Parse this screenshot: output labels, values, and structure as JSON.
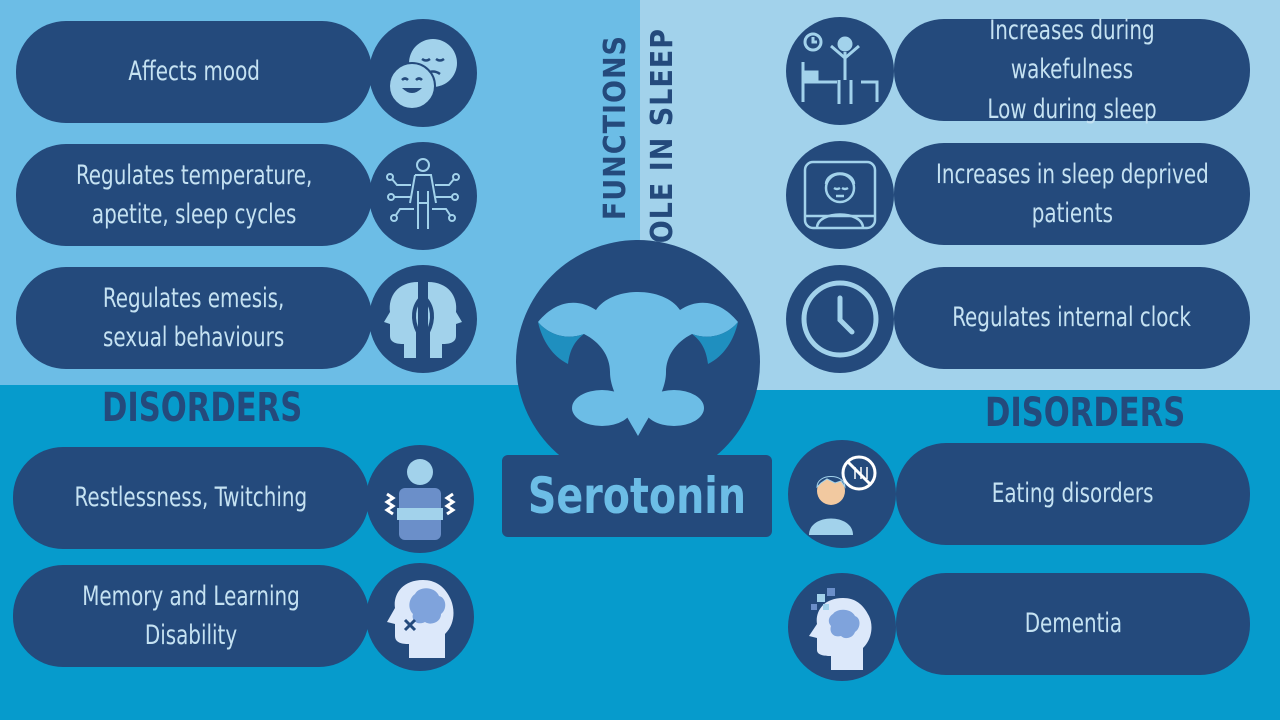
{
  "title": "Serotonin",
  "sections": {
    "functions_label": "FUNCTIONS",
    "role_label": "ROLE IN SLEEP",
    "disorders_left_label": "DISORDERS",
    "disorders_right_label": "DISORDERS"
  },
  "functions": [
    {
      "text": "Affects mood",
      "icon": "mood-faces-icon"
    },
    {
      "text": "Regulates temperature,\napetite, sleep cycles",
      "icon": "body-network-icon"
    },
    {
      "text": "Regulates emesis,\nsexual behaviours",
      "icon": "two-heads-icon"
    }
  ],
  "sleep_roles": [
    {
      "text": "Increases during wakefulness\nLow during sleep",
      "icon": "bed-waking-icon"
    },
    {
      "text": "Increases in sleep deprived\npatients",
      "icon": "tired-person-icon"
    },
    {
      "text": "Regulates internal clock",
      "icon": "clock-icon"
    }
  ],
  "disorders_left": [
    {
      "text": "Restlessness, Twitching",
      "icon": "twitching-person-icon"
    },
    {
      "text": "Memory and Learning Disability",
      "icon": "brain-x-icon"
    }
  ],
  "disorders_right": [
    {
      "text": "Eating disorders",
      "icon": "no-food-person-icon"
    },
    {
      "text": "Dementia",
      "icon": "dementia-head-icon"
    }
  ],
  "colors": {
    "dark_blue": "#244a7c",
    "light_blue": "#6cbde6",
    "pale_blue": "#a2d2eb",
    "mid_blue": "#069bcc",
    "text_light": "#c5e2f2"
  }
}
